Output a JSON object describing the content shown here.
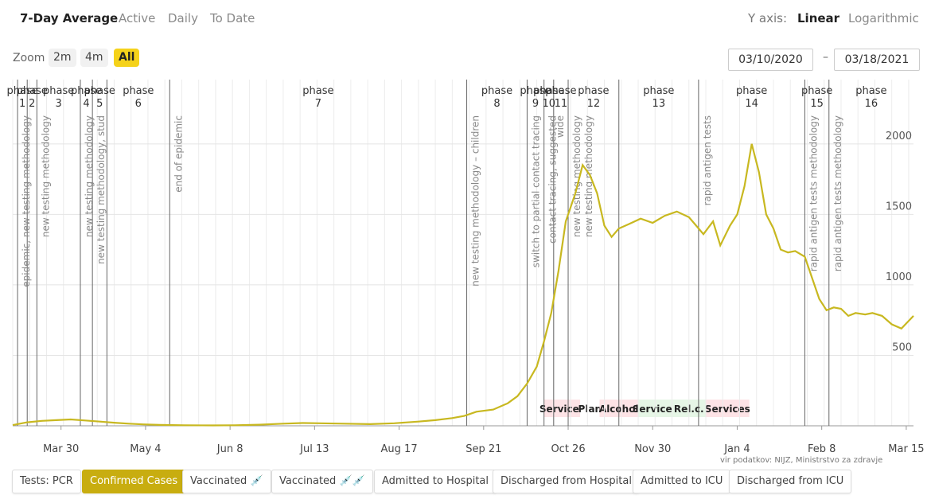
{
  "tabs": [
    {
      "label": "7-Day Average",
      "active": true
    },
    {
      "label": "Active",
      "active": false
    },
    {
      "label": "Daily",
      "active": false
    },
    {
      "label": "To Date",
      "active": false
    }
  ],
  "yaxis": {
    "label": "Y axis:",
    "options": [
      {
        "label": "Linear",
        "active": true
      },
      {
        "label": "Logarithmic",
        "active": false
      }
    ]
  },
  "zoom": {
    "label": "Zoom",
    "options": [
      {
        "label": "2m",
        "active": false
      },
      {
        "label": "4m",
        "active": false
      },
      {
        "label": "All",
        "active": true
      }
    ]
  },
  "date_range": {
    "from": "03/10/2020",
    "to": "03/18/2021",
    "separator": "–"
  },
  "source": "vir podatkov: NIJZ, Ministrstvo za zdravje",
  "bottom_tabs": [
    {
      "label": "Tests: PCR",
      "active": false
    },
    {
      "label": "Confirmed Cases",
      "active": true
    },
    {
      "label": "Vaccinated 💉",
      "active": false
    },
    {
      "label": "Vaccinated 💉💉",
      "active": false
    },
    {
      "label": "Admitted to Hospital",
      "active": false
    },
    {
      "label": "Discharged from Hospital",
      "active": false
    },
    {
      "label": "Admitted to ICU",
      "active": false
    },
    {
      "label": "Discharged from ICU",
      "active": false
    }
  ],
  "colors": {
    "line": "#c8b820",
    "accent": "#f5d21a",
    "red_band": "#fde3e6",
    "green_band": "#e6f6e6"
  },
  "chart_data": {
    "type": "line",
    "x_start": "2020-03-10",
    "x_end": "2021-03-18",
    "ylim": [
      0,
      2400
    ],
    "yticks": [
      500,
      1000,
      1500,
      2000
    ],
    "xticks": [
      {
        "label": "Mar 30",
        "date": "2020-03-30"
      },
      {
        "label": "May 4",
        "date": "2020-05-04"
      },
      {
        "label": "Jun 8",
        "date": "2020-06-08"
      },
      {
        "label": "Jul 13",
        "date": "2020-07-13"
      },
      {
        "label": "Aug 17",
        "date": "2020-08-17"
      },
      {
        "label": "Sep 21",
        "date": "2020-09-21"
      },
      {
        "label": "Oct 26",
        "date": "2020-10-26"
      },
      {
        "label": "Nov 30",
        "date": "2020-11-30"
      },
      {
        "label": "Jan 4",
        "date": "2021-01-04"
      },
      {
        "label": "Feb 8",
        "date": "2021-02-08"
      },
      {
        "label": "Mar 15",
        "date": "2021-03-15"
      }
    ],
    "series": [
      {
        "points": [
          [
            "2020-03-10",
            5
          ],
          [
            "2020-03-16",
            25
          ],
          [
            "2020-03-22",
            35
          ],
          [
            "2020-03-28",
            40
          ],
          [
            "2020-04-03",
            45
          ],
          [
            "2020-04-09",
            38
          ],
          [
            "2020-04-15",
            30
          ],
          [
            "2020-04-21",
            22
          ],
          [
            "2020-04-27",
            15
          ],
          [
            "2020-05-03",
            10
          ],
          [
            "2020-05-10",
            6
          ],
          [
            "2020-05-20",
            4
          ],
          [
            "2020-06-01",
            3
          ],
          [
            "2020-06-10",
            4
          ],
          [
            "2020-06-20",
            8
          ],
          [
            "2020-06-30",
            15
          ],
          [
            "2020-07-08",
            20
          ],
          [
            "2020-07-15",
            18
          ],
          [
            "2020-07-25",
            15
          ],
          [
            "2020-08-05",
            12
          ],
          [
            "2020-08-15",
            18
          ],
          [
            "2020-08-25",
            30
          ],
          [
            "2020-09-01",
            40
          ],
          [
            "2020-09-08",
            55
          ],
          [
            "2020-09-13",
            70
          ],
          [
            "2020-09-18",
            100
          ],
          [
            "2020-09-25",
            115
          ],
          [
            "2020-10-01",
            160
          ],
          [
            "2020-10-05",
            210
          ],
          [
            "2020-10-09",
            300
          ],
          [
            "2020-10-13",
            420
          ],
          [
            "2020-10-16",
            600
          ],
          [
            "2020-10-19",
            800
          ],
          [
            "2020-10-22",
            1100
          ],
          [
            "2020-10-25",
            1450
          ],
          [
            "2020-10-29",
            1650
          ],
          [
            "2020-11-01",
            1850
          ],
          [
            "2020-11-04",
            1780
          ],
          [
            "2020-11-07",
            1650
          ],
          [
            "2020-11-10",
            1420
          ],
          [
            "2020-11-13",
            1340
          ],
          [
            "2020-11-16",
            1400
          ],
          [
            "2020-11-20",
            1430
          ],
          [
            "2020-11-25",
            1470
          ],
          [
            "2020-11-30",
            1440
          ],
          [
            "2020-12-05",
            1490
          ],
          [
            "2020-12-10",
            1520
          ],
          [
            "2020-12-15",
            1480
          ],
          [
            "2020-12-18",
            1420
          ],
          [
            "2020-12-21",
            1360
          ],
          [
            "2020-12-25",
            1450
          ],
          [
            "2020-12-28",
            1280
          ],
          [
            "2021-01-01",
            1420
          ],
          [
            "2021-01-04",
            1500
          ],
          [
            "2021-01-07",
            1700
          ],
          [
            "2021-01-10",
            2000
          ],
          [
            "2021-01-13",
            1800
          ],
          [
            "2021-01-16",
            1500
          ],
          [
            "2021-01-19",
            1400
          ],
          [
            "2021-01-22",
            1250
          ],
          [
            "2021-01-25",
            1230
          ],
          [
            "2021-01-28",
            1240
          ],
          [
            "2021-02-01",
            1200
          ],
          [
            "2021-02-04",
            1050
          ],
          [
            "2021-02-07",
            900
          ],
          [
            "2021-02-10",
            820
          ],
          [
            "2021-02-13",
            840
          ],
          [
            "2021-02-16",
            830
          ],
          [
            "2021-02-19",
            780
          ],
          [
            "2021-02-22",
            800
          ],
          [
            "2021-02-26",
            790
          ],
          [
            "2021-03-01",
            800
          ],
          [
            "2021-03-05",
            780
          ],
          [
            "2021-03-09",
            720
          ],
          [
            "2021-03-13",
            690
          ],
          [
            "2021-03-18",
            780
          ]
        ]
      }
    ],
    "phases": [
      {
        "date": "2020-03-12",
        "label": "phase",
        "num": "1"
      },
      {
        "date": "2020-03-16",
        "label": "phase",
        "num": "2"
      },
      {
        "date": "2020-03-20",
        "label": "phase",
        "num": "3"
      },
      {
        "date": "2020-04-07",
        "label": "phase",
        "num": "4"
      },
      {
        "date": "2020-04-12",
        "label": "phase",
        "num": "5"
      },
      {
        "date": "2020-04-18",
        "label": "phase",
        "num": "6"
      },
      {
        "date": "2020-05-14",
        "label": "phase",
        "num": "7"
      },
      {
        "date": "2020-09-14",
        "label": "phase",
        "num": "8"
      },
      {
        "date": "2020-10-09",
        "label": "phase",
        "num": "9"
      },
      {
        "date": "2020-10-16",
        "label": "phase",
        "num": "10"
      },
      {
        "date": "2020-10-20",
        "label": "phase",
        "num": "11"
      },
      {
        "date": "2020-10-26",
        "label": "phase",
        "num": "12"
      },
      {
        "date": "2020-11-16",
        "label": "phase",
        "num": "13"
      },
      {
        "date": "2020-12-19",
        "label": "phase",
        "num": "14"
      },
      {
        "date": "2021-02-01",
        "label": "phase",
        "num": "15"
      },
      {
        "date": "2021-02-11",
        "label": "phase",
        "num": "16"
      }
    ],
    "annotations": [
      {
        "date": "2020-03-13",
        "text": "epidemic, new testing methodology"
      },
      {
        "date": "2020-03-21",
        "text": "new testing methodology"
      },
      {
        "date": "2020-04-08",
        "text": "new testing methodology"
      },
      {
        "date": "2020-04-13",
        "text": "new testing methodology, stud"
      },
      {
        "date": "2020-05-15",
        "text": "end of epidemic"
      },
      {
        "date": "2020-09-15",
        "text": "new testing methodology – children"
      },
      {
        "date": "2020-10-10",
        "text": "switch to partial contact tracing"
      },
      {
        "date": "2020-10-17",
        "text": "contact tracing, suggested"
      },
      {
        "date": "2020-10-20",
        "text": "wide"
      },
      {
        "date": "2020-10-27",
        "text": "new testing methodology"
      },
      {
        "date": "2020-11-01",
        "text": "new testing methodology"
      },
      {
        "date": "2020-12-20",
        "text": "rapid antigen tests"
      },
      {
        "date": "2021-02-02",
        "text": "rapid antigen tests methodology"
      },
      {
        "date": "2021-02-12",
        "text": "rapid antigen tests methodology"
      }
    ],
    "bands": [
      {
        "from": "2020-10-16",
        "to": "2020-10-31",
        "text": "Services",
        "color": "red"
      },
      {
        "from": "2020-10-31",
        "to": "2020-11-08",
        "text": "Plan",
        "color": "white"
      },
      {
        "from": "2020-11-08",
        "to": "2020-11-24",
        "text": "Alcohol",
        "color": "red"
      },
      {
        "from": "2020-11-24",
        "to": "2020-12-08",
        "text": "Services",
        "color": "green"
      },
      {
        "from": "2020-12-08",
        "to": "2020-12-22",
        "text": "Rel.c.",
        "color": "green"
      },
      {
        "from": "2020-12-22",
        "to": "2021-01-09",
        "text": "Services",
        "color": "red"
      }
    ]
  }
}
